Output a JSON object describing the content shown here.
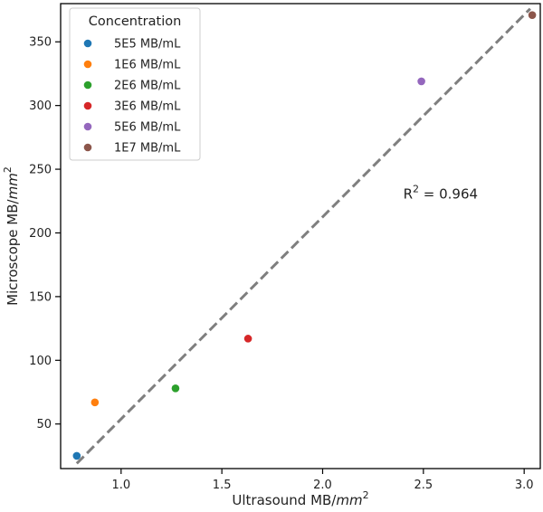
{
  "chart_data": {
    "type": "scatter",
    "xlabel": "Ultrasound MB/",
    "xlabel_unit": "mm",
    "xlabel_exp": "2",
    "ylabel": "Microscope MB/",
    "ylabel_unit": "mm",
    "ylabel_exp": "2",
    "xlim": [
      0.7,
      3.08
    ],
    "ylim": [
      15,
      380
    ],
    "x_ticks": [
      1.0,
      1.5,
      2.0,
      2.5,
      3.0
    ],
    "x_tick_labels": [
      "1.0",
      "1.5",
      "2.0",
      "2.5",
      "3.0"
    ],
    "y_ticks": [
      50,
      100,
      150,
      200,
      250,
      300,
      350
    ],
    "y_tick_labels": [
      "50",
      "100",
      "150",
      "200",
      "250",
      "300",
      "350"
    ],
    "legend": {
      "title": "Concentration",
      "position": "top-left"
    },
    "series": [
      {
        "name": "5E5 MB/mL",
        "color": "#1f77b4",
        "x": 0.78,
        "y": 25
      },
      {
        "name": "1E6 MB/mL",
        "color": "#ff7f0e",
        "x": 0.87,
        "y": 67
      },
      {
        "name": "2E6 MB/mL",
        "color": "#2ca02c",
        "x": 1.27,
        "y": 78
      },
      {
        "name": "3E6 MB/mL",
        "color": "#d62728",
        "x": 1.63,
        "y": 117
      },
      {
        "name": "5E6 MB/mL",
        "color": "#9467bd",
        "x": 2.49,
        "y": 319
      },
      {
        "name": "1E7 MB/mL",
        "color": "#8c564b",
        "x": 3.04,
        "y": 371
      }
    ],
    "fit_line": {
      "x": [
        0.78,
        3.03
      ],
      "y": [
        19,
        376
      ],
      "color": "#7f7f7f"
    },
    "annotation": {
      "label": "R",
      "sup": "2",
      "value": " = 0.964",
      "x": 2.4,
      "y": 227
    }
  }
}
